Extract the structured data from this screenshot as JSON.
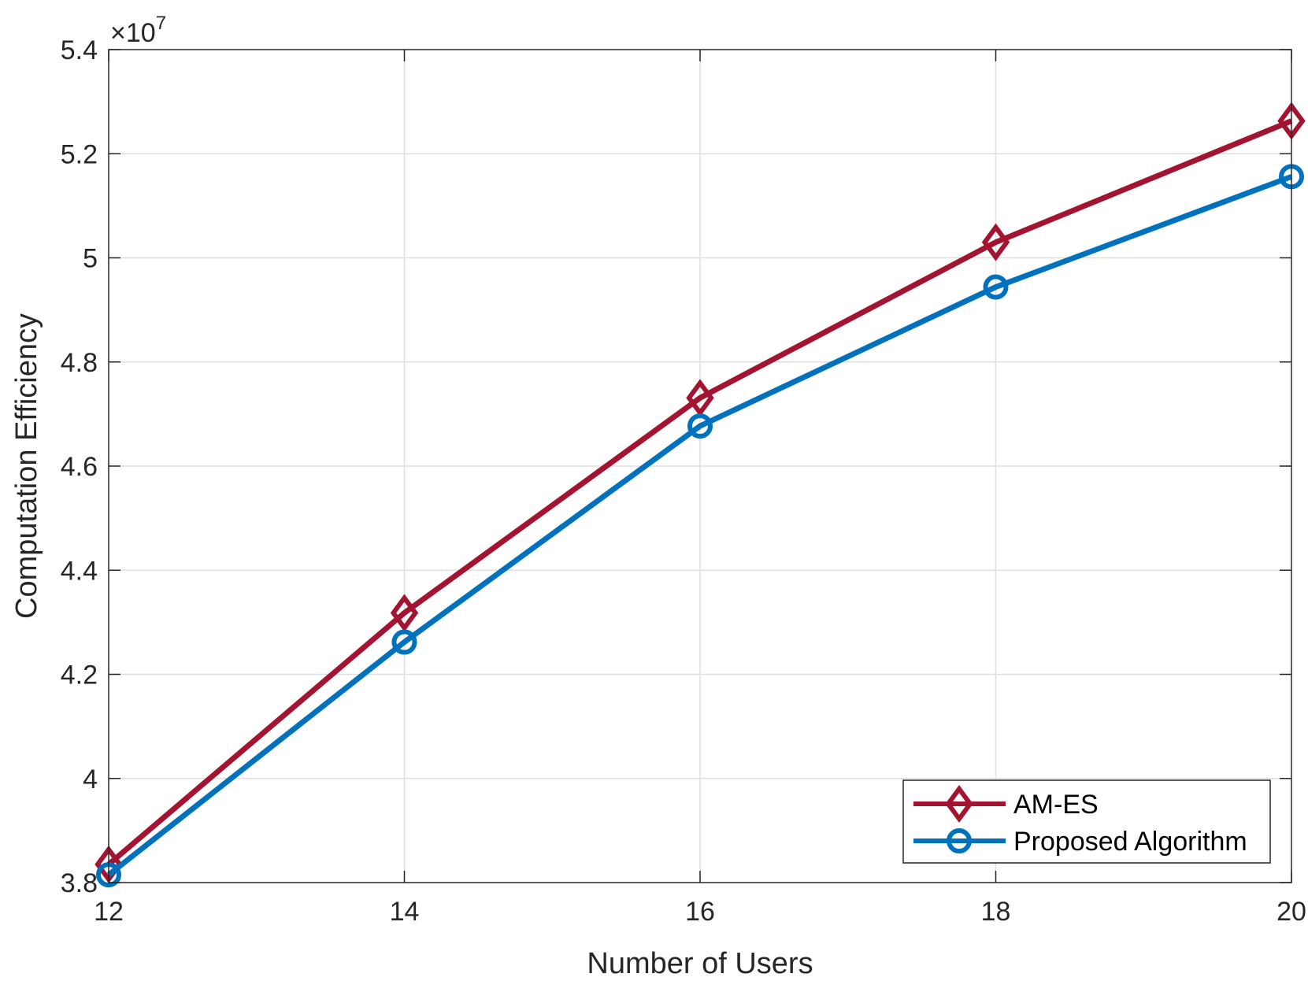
{
  "chart_data": {
    "type": "line",
    "xlabel": "Number of Users",
    "ylabel": "Computation Efficiency",
    "y_multiplier": {
      "base": "×10",
      "exponent": "7"
    },
    "xlim": [
      12,
      20
    ],
    "ylim": [
      3.8,
      5.4
    ],
    "x_ticks": [
      12,
      14,
      16,
      18,
      20
    ],
    "x_tick_labels": [
      "12",
      "14",
      "16",
      "18",
      "20"
    ],
    "y_ticks": [
      3.8,
      4.0,
      4.2,
      4.4,
      4.6,
      4.8,
      5.0,
      5.2,
      5.4
    ],
    "y_tick_labels": [
      "3.8",
      "4",
      "4.2",
      "4.4",
      "4.6",
      "4.8",
      "5",
      "5.2",
      "5.4"
    ],
    "grid": true,
    "legend_position": "bottom-right",
    "x": [
      12,
      14,
      16,
      18,
      20
    ],
    "series": [
      {
        "name": "AM-ES",
        "color": "#A2142F",
        "marker": "diamond",
        "values": [
          3.835,
          4.318,
          4.731,
          5.03,
          5.263
        ]
      },
      {
        "name": "Proposed Algorithm",
        "color": "#0072BD",
        "marker": "circle",
        "values": [
          3.815,
          4.262,
          4.677,
          4.944,
          5.156
        ]
      }
    ]
  }
}
